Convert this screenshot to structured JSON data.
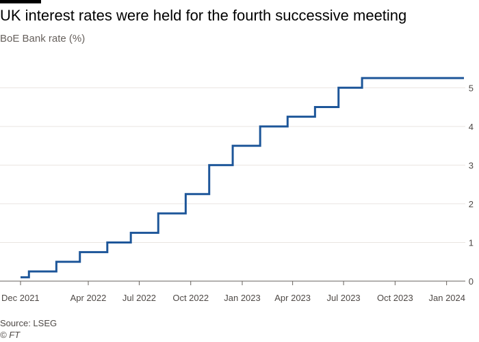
{
  "header": {
    "title": "UK interest rates were held for the fourth successive meeting",
    "subtitle": "BoE Bank rate (%)"
  },
  "footer": {
    "source": "Source: LSEG",
    "copyright": "© FT"
  },
  "colors": {
    "line": "#1d5699",
    "grid": "#e9e4e0",
    "axis": "#66605c",
    "text": "#4d4845"
  },
  "chart_data": {
    "type": "line",
    "title": "UK interest rates were held for the fourth successive meeting",
    "subtitle": "BoE Bank rate (%)",
    "xlabel": "",
    "ylabel": "",
    "x_range": [
      "2021-12-01",
      "2024-02-01"
    ],
    "ylim": [
      0,
      5.5
    ],
    "y_ticks": [
      0,
      1,
      2,
      3,
      4,
      5
    ],
    "x_ticks": [
      {
        "date": "2021-12-01",
        "label": "Dec 2021"
      },
      {
        "date": "2022-04-01",
        "label": "Apr 2022"
      },
      {
        "date": "2022-07-01",
        "label": "Jul 2022"
      },
      {
        "date": "2022-10-01",
        "label": "Oct 2022"
      },
      {
        "date": "2023-01-01",
        "label": "Jan 2023"
      },
      {
        "date": "2023-04-01",
        "label": "Apr 2023"
      },
      {
        "date": "2023-07-01",
        "label": "Jul 2023"
      },
      {
        "date": "2023-10-01",
        "label": "Oct 2023"
      },
      {
        "date": "2024-01-01",
        "label": "Jan 2024"
      }
    ],
    "grid": true,
    "y_axis_side": "right",
    "step": true,
    "series": [
      {
        "color": "#1d5699",
        "points": [
          {
            "x": "2021-12-01",
            "y": 0.1
          },
          {
            "x": "2021-12-16",
            "y": 0.25
          },
          {
            "x": "2022-02-03",
            "y": 0.5
          },
          {
            "x": "2022-03-17",
            "y": 0.75
          },
          {
            "x": "2022-05-05",
            "y": 1.0
          },
          {
            "x": "2022-06-16",
            "y": 1.25
          },
          {
            "x": "2022-08-04",
            "y": 1.75
          },
          {
            "x": "2022-09-22",
            "y": 2.25
          },
          {
            "x": "2022-11-03",
            "y": 3.0
          },
          {
            "x": "2022-12-15",
            "y": 3.5
          },
          {
            "x": "2023-02-02",
            "y": 4.0
          },
          {
            "x": "2023-03-23",
            "y": 4.25
          },
          {
            "x": "2023-05-11",
            "y": 4.5
          },
          {
            "x": "2023-06-22",
            "y": 5.0
          },
          {
            "x": "2023-08-03",
            "y": 5.25
          },
          {
            "x": "2024-02-01",
            "y": 5.25
          }
        ]
      }
    ]
  }
}
